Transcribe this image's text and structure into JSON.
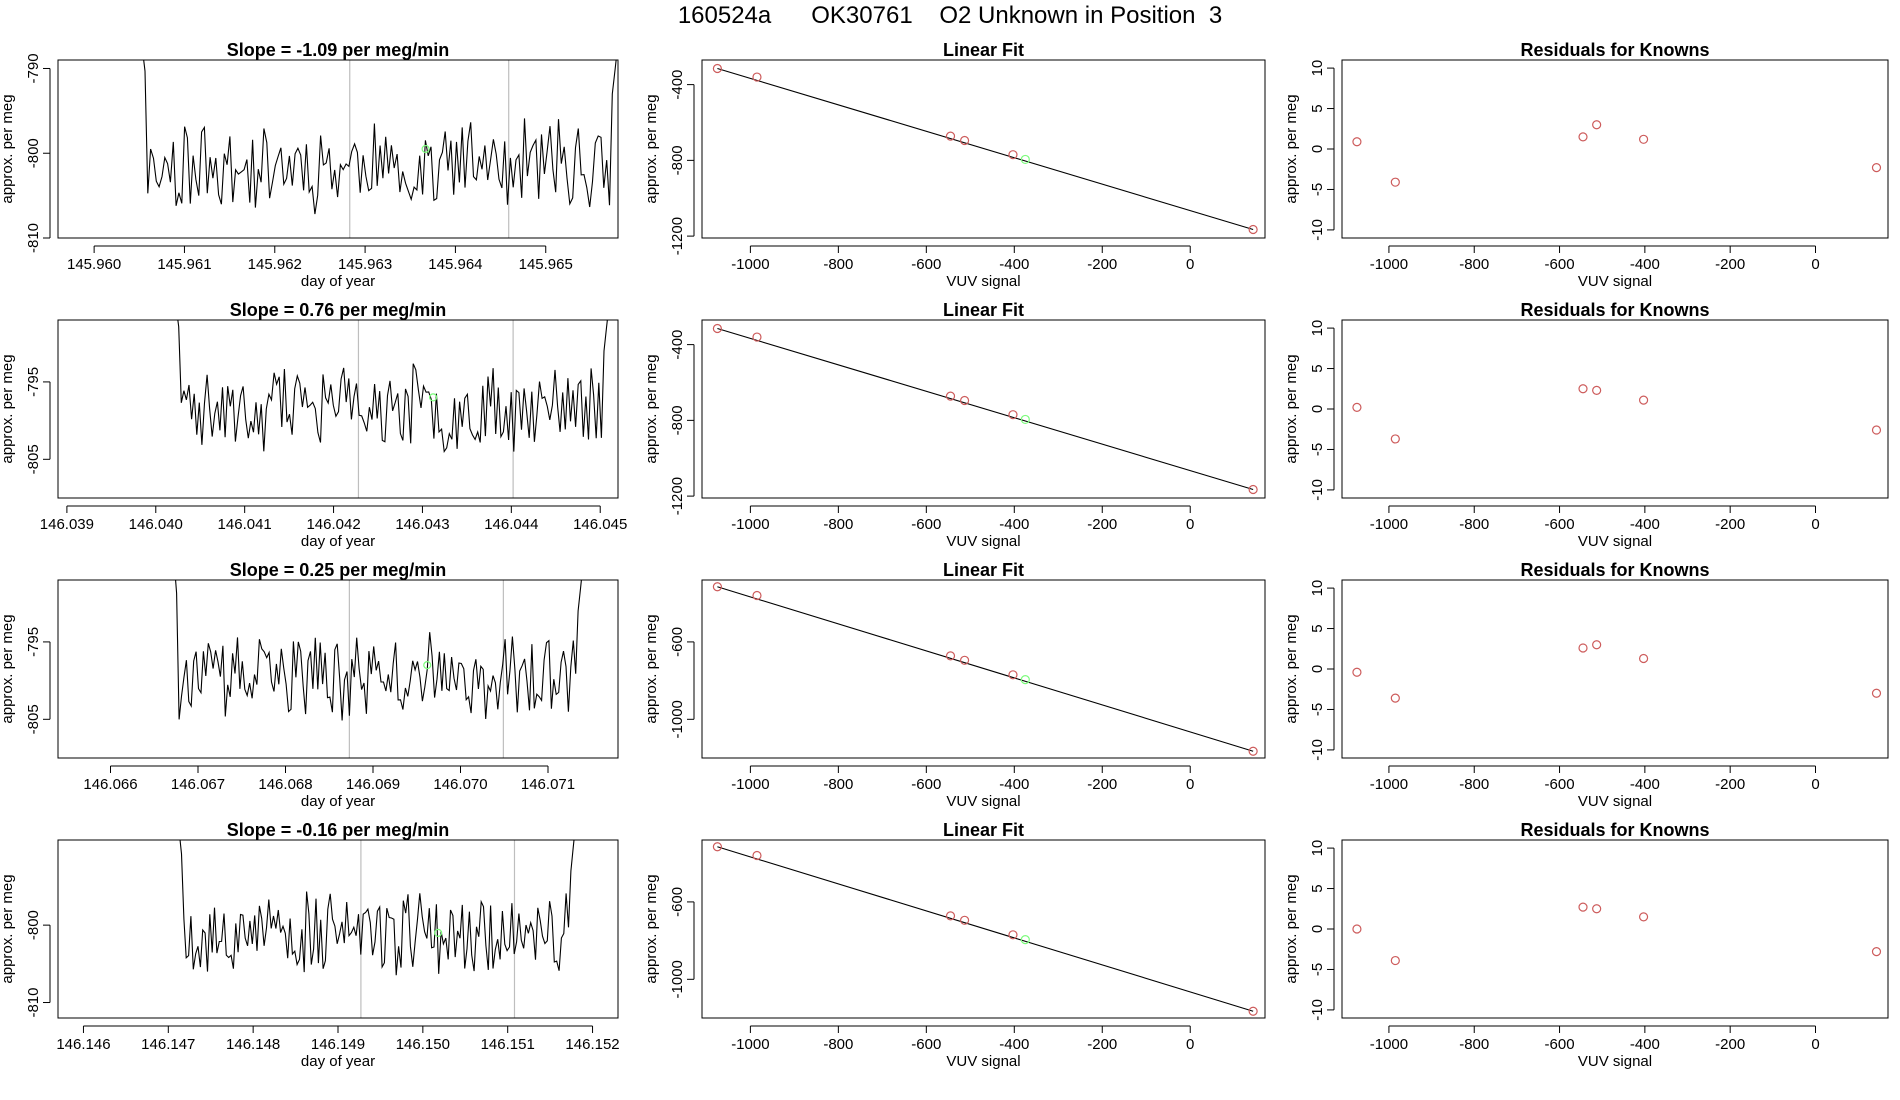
{
  "page": {
    "title": "160524a      OK30761    O2 Unknown in Position  3"
  },
  "colors": {
    "axis": "#000000",
    "line": "#000000",
    "marker_known": "#cd5c5c",
    "marker_unknown": "#7cfc7c",
    "vline": "#bebebe"
  },
  "chart_data": [
    {
      "type": "line",
      "row": 1,
      "title": "Slope =  -1.09  per meg/min",
      "xlabel": "day of year",
      "ylabel": "approx. per meg",
      "xlim": [
        145.9596,
        145.9658
      ],
      "ylim": [
        -810,
        -789
      ],
      "xticks": [
        145.96,
        145.961,
        145.962,
        145.963,
        145.964,
        145.965
      ],
      "xtick_labels": [
        "145.960",
        "145.961",
        "145.962",
        "145.963",
        "145.964",
        "145.965"
      ],
      "yticks": [
        -810,
        -800,
        -790
      ],
      "ytick_labels": [
        "-810",
        "-800",
        "-790"
      ],
      "x_start": 145.9605,
      "x_end": 145.9658,
      "series_seed": 11,
      "level": -801.5,
      "spread": 4.5,
      "vlines": [
        145.96283,
        145.96459
      ],
      "unknown_point": {
        "x": 145.96367,
        "y": -799.5
      }
    },
    {
      "type": "scatter",
      "row": 1,
      "title": "Linear Fit",
      "xlabel": "VUV signal",
      "ylabel": "approx. per meg",
      "xlim": [
        -1110,
        170
      ],
      "ylim": [
        -1210,
        -270
      ],
      "xticks": [
        -1000,
        -800,
        -600,
        -400,
        -200,
        0
      ],
      "xtick_labels": [
        "-1000",
        "-800",
        "-600",
        "-400",
        "-200",
        "0"
      ],
      "yticks": [
        -1200,
        -800,
        -400
      ],
      "ytick_labels": [
        "-1200",
        "-800",
        "-400"
      ],
      "fit_line": {
        "x": [
          -1075,
          143
        ],
        "y": [
          -315,
          -1165
        ]
      },
      "knowns": {
        "x": [
          -1075,
          -985,
          -545,
          -513,
          -403,
          143
        ],
        "y": [
          -315,
          -360,
          -672,
          -695,
          -770,
          -1165
        ]
      },
      "unknown": {
        "x": -375,
        "y": -795
      }
    },
    {
      "type": "scatter",
      "row": 1,
      "title": "Residuals for Knowns",
      "xlabel": "VUV signal",
      "ylabel": "approx. per meg",
      "xlim": [
        -1110,
        170
      ],
      "ylim": [
        -11,
        11
      ],
      "xticks": [
        -1000,
        -800,
        -600,
        -400,
        -200,
        0
      ],
      "xtick_labels": [
        "-1000",
        "-800",
        "-600",
        "-400",
        "-200",
        "0"
      ],
      "yticks": [
        -10,
        -5,
        0,
        5,
        10
      ],
      "ytick_labels": [
        "-10",
        "-5",
        "0",
        "5",
        "10"
      ],
      "knowns": {
        "x": [
          -1075,
          -985,
          -545,
          -513,
          -403,
          143
        ],
        "y": [
          0.9,
          -4.1,
          1.5,
          3.0,
          1.2,
          -2.3
        ]
      }
    },
    {
      "type": "line",
      "row": 2,
      "title": "Slope =  0.76  per meg/min",
      "xlabel": "day of year",
      "ylabel": "approx. per meg",
      "xlim": [
        146.0389,
        146.0452
      ],
      "ylim": [
        -810,
        -787
      ],
      "xticks": [
        146.039,
        146.04,
        146.041,
        146.042,
        146.043,
        146.044,
        146.045
      ],
      "xtick_labels": [
        "146.039",
        "146.040",
        "146.041",
        "146.042",
        "146.043",
        "146.044",
        "146.045"
      ],
      "yticks": [
        -805,
        -795
      ],
      "ytick_labels": [
        "-805",
        "-795"
      ],
      "x_start": 146.0402,
      "x_end": 146.0451,
      "series_seed": 23,
      "level": -798.5,
      "spread": 4.8,
      "vlines": [
        146.04228,
        146.04402
      ],
      "unknown_point": {
        "x": 146.04312,
        "y": -797
      }
    },
    {
      "type": "scatter",
      "row": 2,
      "title": "Linear Fit",
      "xlabel": "VUV signal",
      "ylabel": "approx. per meg",
      "xlim": [
        -1110,
        170
      ],
      "ylim": [
        -1210,
        -270
      ],
      "xticks": [
        -1000,
        -800,
        -600,
        -400,
        -200,
        0
      ],
      "xtick_labels": [
        "-1000",
        "-800",
        "-600",
        "-400",
        "-200",
        "0"
      ],
      "yticks": [
        -1200,
        -800,
        -400
      ],
      "ytick_labels": [
        "-1200",
        "-800",
        "-400"
      ],
      "fit_line": {
        "x": [
          -1075,
          143
        ],
        "y": [
          -315,
          -1165
        ]
      },
      "knowns": {
        "x": [
          -1075,
          -985,
          -545,
          -513,
          -403,
          143
        ],
        "y": [
          -315,
          -360,
          -672,
          -695,
          -770,
          -1165
        ]
      },
      "unknown": {
        "x": -375,
        "y": -795
      }
    },
    {
      "type": "scatter",
      "row": 2,
      "title": "Residuals for Knowns",
      "xlabel": "VUV signal",
      "ylabel": "approx. per meg",
      "xlim": [
        -1110,
        170
      ],
      "ylim": [
        -11,
        11
      ],
      "xticks": [
        -1000,
        -800,
        -600,
        -400,
        -200,
        0
      ],
      "xtick_labels": [
        "-1000",
        "-800",
        "-600",
        "-400",
        "-200",
        "0"
      ],
      "yticks": [
        -10,
        -5,
        0,
        5,
        10
      ],
      "ytick_labels": [
        "-10",
        "-5",
        "0",
        "5",
        "10"
      ],
      "knowns": {
        "x": [
          -1075,
          -985,
          -545,
          -513,
          -403,
          143
        ],
        "y": [
          0.2,
          -3.7,
          2.5,
          2.3,
          1.1,
          -2.6
        ]
      }
    },
    {
      "type": "line",
      "row": 3,
      "title": "Slope =  0.25  per meg/min",
      "xlabel": "day of year",
      "ylabel": "approx. per meg",
      "xlim": [
        146.0654,
        146.0718
      ],
      "ylim": [
        -810,
        -787
      ],
      "xticks": [
        146.066,
        146.067,
        146.068,
        146.069,
        146.07,
        146.071
      ],
      "xtick_labels": [
        "146.066",
        "146.067",
        "146.068",
        "146.069",
        "146.070",
        "146.071"
      ],
      "yticks": [
        -805,
        -795
      ],
      "ytick_labels": [
        "-805",
        "-795"
      ],
      "x_start": 146.0667,
      "x_end": 146.0714,
      "series_seed": 37,
      "level": -799.5,
      "spread": 4.6,
      "vlines": [
        146.06873,
        146.07049
      ],
      "unknown_point": {
        "x": 146.06962,
        "y": -798
      }
    },
    {
      "type": "scatter",
      "row": 3,
      "title": "Linear Fit",
      "xlabel": "VUV signal",
      "ylabel": "approx. per meg",
      "xlim": [
        -1110,
        170
      ],
      "ylim": [
        -1200,
        -280
      ],
      "xticks": [
        -1000,
        -800,
        -600,
        -400,
        -200,
        0
      ],
      "xtick_labels": [
        "-1000",
        "-800",
        "-600",
        "-400",
        "-200",
        "0"
      ],
      "yticks": [
        -1000,
        -600
      ],
      "ytick_labels": [
        "-1000",
        "-600"
      ],
      "fit_line": {
        "x": [
          -1075,
          143
        ],
        "y": [
          -315,
          -1165
        ]
      },
      "knowns": {
        "x": [
          -1075,
          -985,
          -545,
          -513,
          -403,
          143
        ],
        "y": [
          -315,
          -360,
          -672,
          -695,
          -770,
          -1165
        ]
      },
      "unknown": {
        "x": -375,
        "y": -795
      }
    },
    {
      "type": "scatter",
      "row": 3,
      "title": "Residuals for Knowns",
      "xlabel": "VUV signal",
      "ylabel": "approx. per meg",
      "xlim": [
        -1110,
        170
      ],
      "ylim": [
        -11,
        11
      ],
      "xticks": [
        -1000,
        -800,
        -600,
        -400,
        -200,
        0
      ],
      "xtick_labels": [
        "-1000",
        "-800",
        "-600",
        "-400",
        "-200",
        "0"
      ],
      "yticks": [
        -10,
        -5,
        0,
        5,
        10
      ],
      "ytick_labels": [
        "-10",
        "-5",
        "0",
        "5",
        "10"
      ],
      "knowns": {
        "x": [
          -1075,
          -985,
          -545,
          -513,
          -403,
          143
        ],
        "y": [
          -0.4,
          -3.6,
          2.6,
          3.0,
          1.3,
          -3.0
        ]
      }
    },
    {
      "type": "line",
      "row": 4,
      "title": "Slope =  -0.16  per meg/min",
      "xlabel": "day of year",
      "ylabel": "approx. per meg",
      "xlim": [
        146.1457,
        146.1523
      ],
      "ylim": [
        -812,
        -789
      ],
      "xticks": [
        146.146,
        146.147,
        146.148,
        146.149,
        146.15,
        146.151,
        146.152
      ],
      "xtick_labels": [
        "146.146",
        "146.147",
        "146.148",
        "146.149",
        "146.150",
        "146.151",
        "146.152"
      ],
      "yticks": [
        -810,
        -800
      ],
      "ytick_labels": [
        "-810",
        "-800"
      ],
      "x_start": 146.1471,
      "x_end": 146.1518,
      "series_seed": 53,
      "level": -801,
      "spread": 4.7,
      "vlines": [
        146.14927,
        146.15108
      ],
      "unknown_point": {
        "x": 146.15018,
        "y": -801
      }
    },
    {
      "type": "scatter",
      "row": 4,
      "title": "Linear Fit",
      "xlabel": "VUV signal",
      "ylabel": "approx. per meg",
      "xlim": [
        -1110,
        170
      ],
      "ylim": [
        -1200,
        -280
      ],
      "xticks": [
        -1000,
        -800,
        -600,
        -400,
        -200,
        0
      ],
      "xtick_labels": [
        "-1000",
        "-800",
        "-600",
        "-400",
        "-200",
        "0"
      ],
      "yticks": [
        -1000,
        -600
      ],
      "ytick_labels": [
        "-1000",
        "-600"
      ],
      "fit_line": {
        "x": [
          -1075,
          143
        ],
        "y": [
          -315,
          -1165
        ]
      },
      "knowns": {
        "x": [
          -1075,
          -985,
          -545,
          -513,
          -403,
          143
        ],
        "y": [
          -315,
          -360,
          -672,
          -695,
          -770,
          -1165
        ]
      },
      "unknown": {
        "x": -375,
        "y": -795
      }
    },
    {
      "type": "scatter",
      "row": 4,
      "title": "Residuals for Knowns",
      "xlabel": "VUV signal",
      "ylabel": "approx. per meg",
      "xlim": [
        -1110,
        170
      ],
      "ylim": [
        -11,
        11
      ],
      "xticks": [
        -1000,
        -800,
        -600,
        -400,
        -200,
        0
      ],
      "xtick_labels": [
        "-1000",
        "-800",
        "-600",
        "-400",
        "-200",
        "0"
      ],
      "yticks": [
        -10,
        -5,
        0,
        5,
        10
      ],
      "ytick_labels": [
        "-10",
        "-5",
        "0",
        "5",
        "10"
      ],
      "knowns": {
        "x": [
          -1075,
          -985,
          -545,
          -513,
          -403,
          143
        ],
        "y": [
          0.0,
          -3.9,
          2.7,
          2.5,
          1.5,
          -2.8
        ]
      }
    }
  ]
}
